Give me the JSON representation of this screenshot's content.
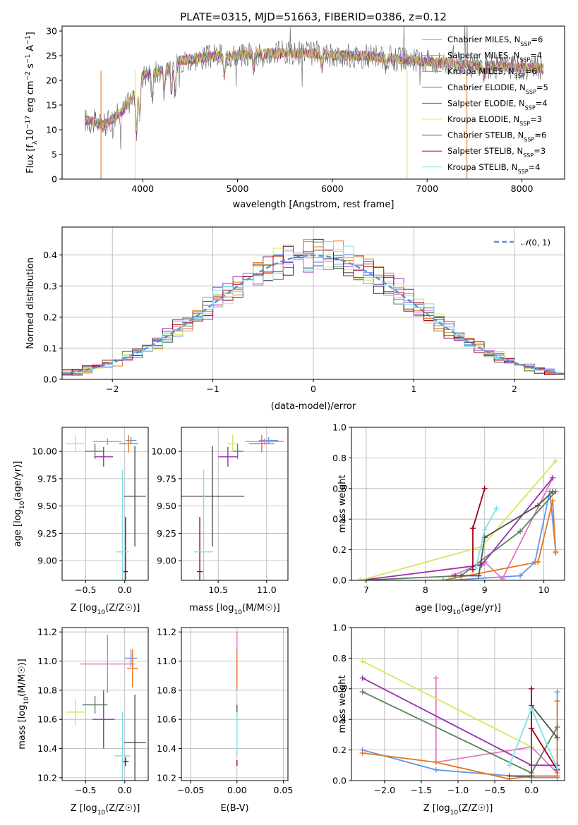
{
  "colors": {
    "chabrier_miles": "#6495ed",
    "salpeter_miles": "#e377c2",
    "kroupa_miles": "#e8751a",
    "chabrier_elodie": "#5a8060",
    "salpeter_elodie": "#9b30b0",
    "kroupa_elodie": "#d4e85a",
    "chabrier_stelib": "#505050",
    "salpeter_stelib": "#a00018",
    "kroupa_stelib": "#80dfe8",
    "normal": "#5b8fd6"
  },
  "chart_data": [
    {
      "id": "spectrum",
      "type": "line",
      "title": "PLATE=0315, MJD=51663, FIBERID=0386, z=0.12",
      "xlabel": "wavelength [Angstrom, rest frame]",
      "ylabel": "Flux [f",
      "xlim": [
        3150,
        8450
      ],
      "ylim": [
        0,
        31
      ],
      "xticks": [
        "4000",
        "5000",
        "6000",
        "7000",
        "8000"
      ],
      "yticks": [
        "0",
        "5",
        "10",
        "15",
        "20",
        "25",
        "30"
      ],
      "legend_position": "top-right",
      "legend": [
        {
          "prefix": "Chabrier MILES, N",
          "value": "=6",
          "key": "chabrier_miles"
        },
        {
          "prefix": "Salpeter MILES, N",
          "value": "=4",
          "key": "salpeter_miles"
        },
        {
          "prefix": "Kroupa MILES, N",
          "value": "=6",
          "key": "kroupa_miles"
        },
        {
          "prefix": "Chabrier ELODIE, N",
          "value": "=5",
          "key": "chabrier_elodie"
        },
        {
          "prefix": "Salpeter ELODIE, N",
          "value": "=4",
          "key": "salpeter_elodie"
        },
        {
          "prefix": "Kroupa ELODIE, N",
          "value": "=3",
          "key": "kroupa_elodie"
        },
        {
          "prefix": "Chabrier STELIB, N",
          "value": "=6",
          "key": "chabrier_stelib"
        },
        {
          "prefix": "Salpeter STELIB, N",
          "value": "=3",
          "key": "salpeter_stelib"
        },
        {
          "prefix": "Kroupa STELIB, N",
          "value": "=4",
          "key": "kroupa_stelib"
        }
      ],
      "continuum": [
        [
          3390,
          12
        ],
        [
          3500,
          11.5
        ],
        [
          3600,
          11
        ],
        [
          3700,
          12.5
        ],
        [
          3800,
          14
        ],
        [
          3900,
          17
        ],
        [
          4000,
          21
        ],
        [
          4200,
          22
        ],
        [
          4400,
          24
        ],
        [
          4600,
          24.5
        ],
        [
          4800,
          25
        ],
        [
          5000,
          25
        ],
        [
          5200,
          25.5
        ],
        [
          5500,
          25.5
        ],
        [
          5800,
          25.5
        ],
        [
          6000,
          25
        ],
        [
          6300,
          25
        ],
        [
          6600,
          24.5
        ],
        [
          6900,
          24
        ],
        [
          7200,
          23.5
        ],
        [
          7500,
          23
        ],
        [
          7800,
          22.8
        ],
        [
          8100,
          22.5
        ],
        [
          8230,
          22.5
        ]
      ]
    },
    {
      "id": "residuals",
      "type": "histogram",
      "xlabel": "(data-model)/error",
      "ylabel": "Normed distribution",
      "xlim": [
        -2.5,
        2.5
      ],
      "ylim": [
        0,
        0.49
      ],
      "xticks": [
        "−2",
        "−1",
        "0",
        "1",
        "2"
      ],
      "yticks": [
        "0.0",
        "0.1",
        "0.2",
        "0.3",
        "0.4"
      ],
      "legend_position": "top-right",
      "normal_label": "(0, 1)",
      "bin_width": 0.1
    },
    {
      "id": "age_vs_Z",
      "type": "scatter",
      "xlabel": "Z [log",
      "ylabel": "age  [log",
      "xlim": [
        -0.8,
        0.3
      ],
      "ylim": [
        8.82,
        10.22
      ],
      "xticks": [
        "−0.5",
        "0.0"
      ],
      "yticks": [
        "9.00",
        "9.25",
        "9.50",
        "9.75",
        "10.00"
      ],
      "points": [
        {
          "key": "chabrier_miles",
          "x": 0.08,
          "xerr": 0.07,
          "y": 10.1,
          "yerr": 0.03
        },
        {
          "key": "salpeter_miles",
          "x": -0.22,
          "xerr": 0.18,
          "y": 10.09,
          "yerr": 0.03
        },
        {
          "key": "kroupa_miles",
          "x": 0.05,
          "xerr": 0.12,
          "y": 10.07,
          "yerr": 0.08
        },
        {
          "key": "chabrier_elodie",
          "x": -0.38,
          "xerr": 0.12,
          "y": 10.0,
          "yerr": 0.07
        },
        {
          "key": "salpeter_elodie",
          "x": -0.27,
          "xerr": 0.12,
          "y": 9.95,
          "yerr": 0.09
        },
        {
          "key": "kroupa_elodie",
          "x": -0.63,
          "xerr": 0.12,
          "y": 10.07,
          "yerr": 0.08
        },
        {
          "key": "chabrier_stelib",
          "x": 0.13,
          "xerr": 0.14,
          "y": 9.59,
          "yerr": 0.46
        },
        {
          "key": "salpeter_stelib",
          "x": 0.01,
          "xerr": 0.03,
          "y": 8.9,
          "yerr": 0.5
        },
        {
          "key": "kroupa_stelib",
          "x": -0.03,
          "xerr": 0.08,
          "y": 9.08,
          "yerr": 0.75
        }
      ]
    },
    {
      "id": "age_vs_mass",
      "type": "scatter",
      "xlabel": "mass [log",
      "ylabel": "",
      "xlim": [
        10.12,
        11.22
      ],
      "ylim": [
        8.82,
        10.22
      ],
      "xticks": [
        "10.5",
        "11.0"
      ],
      "yticks": [
        "9.00",
        "9.25",
        "9.50",
        "9.75",
        "10.00"
      ],
      "points": [
        {
          "key": "chabrier_miles",
          "x": 11.02,
          "xerr": 0.1,
          "y": 10.1,
          "yerr": 0.03
        },
        {
          "key": "salpeter_miles",
          "x": 10.98,
          "xerr": 0.2,
          "y": 10.09,
          "yerr": 0.03
        },
        {
          "key": "kroupa_miles",
          "x": 10.95,
          "xerr": 0.13,
          "y": 10.07,
          "yerr": 0.08
        },
        {
          "key": "chabrier_elodie",
          "x": 10.7,
          "xerr": 0.06,
          "y": 10.0,
          "yerr": 0.07
        },
        {
          "key": "salpeter_elodie",
          "x": 10.6,
          "xerr": 0.1,
          "y": 9.95,
          "yerr": 0.09
        },
        {
          "key": "kroupa_elodie",
          "x": 10.65,
          "xerr": 0.05,
          "y": 10.07,
          "yerr": 0.08
        },
        {
          "key": "chabrier_stelib",
          "x": 10.44,
          "xerr": 0.33,
          "y": 9.59,
          "yerr": 0.46
        },
        {
          "key": "salpeter_stelib",
          "x": 10.31,
          "xerr": 0.03,
          "y": 8.9,
          "yerr": 0.5
        },
        {
          "key": "kroupa_stelib",
          "x": 10.35,
          "xerr": 0.1,
          "y": 9.08,
          "yerr": 0.75
        }
      ]
    },
    {
      "id": "mass_vs_Z",
      "type": "scatter",
      "xlabel": "Z [log",
      "ylabel": "mass [log",
      "xlim": [
        -0.8,
        0.3
      ],
      "ylim": [
        10.18,
        11.23
      ],
      "xticks": [
        "−0.5",
        "0.0"
      ],
      "yticks": [
        "10.2",
        "10.4",
        "10.6",
        "10.8",
        "11.0",
        "11.2"
      ],
      "points": [
        {
          "key": "chabrier_miles",
          "x": 0.08,
          "xerr": 0.08,
          "y": 11.02,
          "yerr": 0.06
        },
        {
          "key": "salpeter_miles",
          "x": -0.22,
          "xerr": 0.35,
          "y": 10.98,
          "yerr": 0.2
        },
        {
          "key": "kroupa_miles",
          "x": 0.1,
          "xerr": 0.07,
          "y": 10.95,
          "yerr": 0.13
        },
        {
          "key": "chabrier_elodie",
          "x": -0.38,
          "xerr": 0.16,
          "y": 10.7,
          "yerr": 0.06
        },
        {
          "key": "salpeter_elodie",
          "x": -0.27,
          "xerr": 0.14,
          "y": 10.6,
          "yerr": 0.2
        },
        {
          "key": "kroupa_elodie",
          "x": -0.63,
          "xerr": 0.12,
          "y": 10.65,
          "yerr": 0.09
        },
        {
          "key": "chabrier_stelib",
          "x": 0.13,
          "xerr": 0.14,
          "y": 10.44,
          "yerr": 0.33
        },
        {
          "key": "salpeter_stelib",
          "x": 0.01,
          "xerr": 0.04,
          "y": 10.31,
          "yerr": 0.03
        },
        {
          "key": "kroupa_stelib",
          "x": -0.03,
          "xerr": 0.1,
          "y": 10.35,
          "yerr": 0.3
        }
      ]
    },
    {
      "id": "mass_vs_EBV",
      "type": "scatter",
      "xlabel": "E(B-V)",
      "ylabel": "",
      "xlim": [
        -0.06,
        0.055
      ],
      "ylim": [
        10.18,
        11.23
      ],
      "xticks": [
        "−0.05",
        "0.00",
        "0.05"
      ],
      "yticks": [
        "10.2",
        "10.4",
        "10.6",
        "10.8",
        "11.0",
        "11.2"
      ],
      "points": [
        {
          "key": "salpeter_miles",
          "x": 0.0,
          "xerr": 0.0,
          "y": 11.0,
          "yerr": 0.2
        },
        {
          "key": "kroupa_miles",
          "x": 0.0,
          "xerr": 0.0,
          "y": 10.95,
          "yerr": 0.13
        },
        {
          "key": "chabrier_stelib",
          "x": 0.0,
          "xerr": 0.0,
          "y": 10.65,
          "yerr": 0.05
        },
        {
          "key": "kroupa_stelib",
          "x": 0.0,
          "xerr": 0.0,
          "y": 10.5,
          "yerr": 0.15
        },
        {
          "key": "salpeter_stelib",
          "x": 0.0,
          "xerr": 0.0,
          "y": 10.3,
          "yerr": 0.02
        }
      ]
    },
    {
      "id": "weight_vs_age",
      "type": "line",
      "xlabel": "age  [log",
      "ylabel": "mass weight",
      "xlim": [
        6.75,
        10.35
      ],
      "ylim": [
        0,
        1
      ],
      "xticks": [
        "7",
        "8",
        "9",
        "10"
      ],
      "yticks": [
        "0.0",
        "0.2",
        "0.4",
        "0.6",
        "0.8",
        "1.0"
      ],
      "series": [
        {
          "key": "chabrier_miles",
          "points": [
            [
              8.4,
              0.0
            ],
            [
              9.6,
              0.03
            ],
            [
              9.85,
              0.12
            ],
            [
              10.1,
              0.58
            ],
            [
              10.2,
              0.19
            ]
          ]
        },
        {
          "key": "salpeter_miles",
          "points": [
            [
              8.45,
              0.03
            ],
            [
              9.0,
              0.12
            ],
            [
              9.3,
              0.01
            ],
            [
              10.15,
              0.67
            ]
          ]
        },
        {
          "key": "kroupa_miles",
          "points": [
            [
              8.3,
              0.0
            ],
            [
              9.9,
              0.12
            ],
            [
              10.15,
              0.52
            ],
            [
              10.2,
              0.18
            ]
          ]
        },
        {
          "key": "chabrier_elodie",
          "points": [
            [
              6.9,
              0.0
            ],
            [
              8.6,
              0.03
            ],
            [
              9.6,
              0.32
            ],
            [
              10.2,
              0.58
            ]
          ]
        },
        {
          "key": "salpeter_elodie",
          "points": [
            [
              6.9,
              0.0
            ],
            [
              8.95,
              0.1
            ],
            [
              10.15,
              0.67
            ]
          ]
        },
        {
          "key": "kroupa_elodie",
          "points": [
            [
              6.9,
              0.0
            ],
            [
              8.95,
              0.22
            ],
            [
              10.2,
              0.78
            ]
          ]
        },
        {
          "key": "chabrier_stelib",
          "points": [
            [
              8.5,
              0.03
            ],
            [
              8.9,
              0.03
            ],
            [
              9.0,
              0.28
            ],
            [
              9.9,
              0.49
            ],
            [
              10.15,
              0.58
            ]
          ]
        },
        {
          "key": "salpeter_stelib",
          "points": [
            [
              8.8,
              0.07
            ],
            [
              8.8,
              0.34
            ],
            [
              9.0,
              0.6
            ]
          ]
        },
        {
          "key": "kroupa_stelib",
          "points": [
            [
              8.85,
              0.08
            ],
            [
              9.0,
              0.33
            ],
            [
              9.2,
              0.47
            ]
          ]
        }
      ]
    },
    {
      "id": "weight_vs_Z",
      "type": "line",
      "xlabel": "Z [log",
      "ylabel": "mass weight",
      "xlim": [
        -2.45,
        0.45
      ],
      "ylim": [
        0,
        1
      ],
      "xticks": [
        "−2.0",
        "−1.5",
        "−1.0",
        "−0.5",
        "0.0"
      ],
      "yticks": [
        "0.0",
        "0.2",
        "0.4",
        "0.6",
        "0.8",
        "1.0"
      ],
      "series": [
        {
          "key": "chabrier_miles",
          "points": [
            [
              -2.3,
              0.2
            ],
            [
              -1.3,
              0.07
            ],
            [
              0.0,
              0.02
            ],
            [
              0.35,
              0.02
            ],
            [
              0.35,
              0.58
            ]
          ]
        },
        {
          "key": "salpeter_miles",
          "points": [
            [
              -1.3,
              0.67
            ],
            [
              -1.3,
              0.12
            ],
            [
              0.0,
              0.22
            ],
            [
              0.35,
              0.05
            ]
          ]
        },
        {
          "key": "kroupa_miles",
          "points": [
            [
              -2.3,
              0.18
            ],
            [
              -1.3,
              0.12
            ],
            [
              -0.3,
              0.01
            ],
            [
              0.0,
              0.03
            ],
            [
              0.35,
              0.03
            ],
            [
              0.35,
              0.52
            ]
          ]
        },
        {
          "key": "chabrier_elodie",
          "points": [
            [
              -2.3,
              0.58
            ],
            [
              0.0,
              0.05
            ],
            [
              0.35,
              0.35
            ]
          ]
        },
        {
          "key": "salpeter_elodie",
          "points": [
            [
              -2.3,
              0.67
            ],
            [
              0.0,
              0.1
            ],
            [
              0.35,
              0.1
            ]
          ]
        },
        {
          "key": "kroupa_elodie",
          "points": [
            [
              -2.3,
              0.78
            ],
            [
              0.0,
              0.22
            ]
          ]
        },
        {
          "key": "chabrier_stelib",
          "points": [
            [
              -0.3,
              0.03
            ],
            [
              0.0,
              0.03
            ],
            [
              0.0,
              0.49
            ],
            [
              0.35,
              0.28
            ]
          ]
        },
        {
          "key": "salpeter_stelib",
          "points": [
            [
              0.0,
              0.6
            ],
            [
              0.0,
              0.34
            ],
            [
              0.35,
              0.07
            ]
          ]
        },
        {
          "key": "kroupa_stelib",
          "points": [
            [
              -0.3,
              0.1
            ],
            [
              0.0,
              0.47
            ],
            [
              0.35,
              0.08
            ]
          ]
        }
      ]
    }
  ]
}
